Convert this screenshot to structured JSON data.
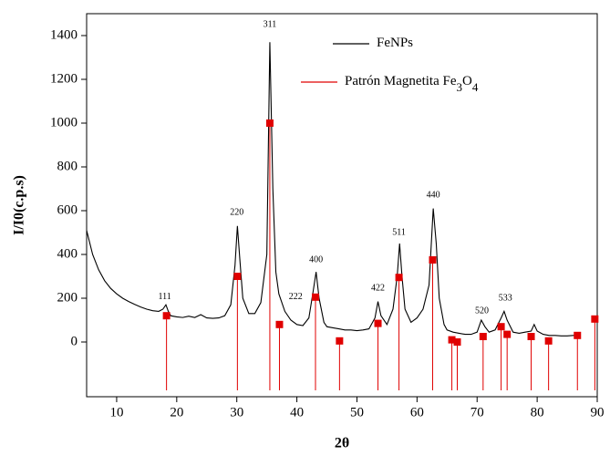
{
  "chart_data": {
    "type": "line",
    "x_label": "2θ",
    "y_label": "I/I0(c.p.s)",
    "xlim": [
      5,
      90
    ],
    "xticks": [
      10,
      20,
      30,
      40,
      50,
      60,
      70,
      80,
      90
    ],
    "ylim": [
      -250,
      1500
    ],
    "yticks": [
      0,
      200,
      400,
      600,
      800,
      1000,
      1200,
      1400
    ],
    "legend": "top-right",
    "series": [
      {
        "name": "FeNPs",
        "color": "#000000",
        "style": "line",
        "x": [
          5,
          6,
          7,
          8,
          9,
          10,
          11,
          12,
          13,
          14,
          15,
          16,
          17,
          17.7,
          18.2,
          18.6,
          19,
          20,
          21,
          22,
          23,
          24,
          25,
          26,
          27,
          28,
          29,
          29.7,
          30.1,
          30.5,
          31,
          32,
          33,
          34,
          35,
          35.5,
          36,
          36.5,
          37,
          38,
          39,
          40,
          41,
          42,
          42.7,
          43.2,
          43.7,
          44.5,
          45,
          46,
          47,
          48,
          49,
          50,
          51,
          52,
          53,
          53.5,
          54,
          55,
          56,
          56.7,
          57.1,
          57.5,
          58,
          59,
          60,
          61,
          62,
          62.7,
          63.2,
          63.7,
          64.5,
          65,
          66,
          67,
          68,
          69,
          70,
          70.7,
          71.3,
          72,
          73,
          74,
          74.5,
          75,
          76,
          77,
          78,
          79,
          79.5,
          80,
          81,
          82,
          83,
          84,
          85,
          86,
          87
        ],
        "values": [
          510,
          400,
          330,
          280,
          245,
          220,
          200,
          185,
          172,
          160,
          150,
          143,
          140,
          150,
          170,
          140,
          120,
          115,
          112,
          118,
          112,
          125,
          110,
          108,
          110,
          120,
          170,
          350,
          530,
          380,
          200,
          130,
          130,
          180,
          400,
          1370,
          700,
          320,
          220,
          140,
          100,
          80,
          75,
          110,
          230,
          320,
          200,
          90,
          70,
          65,
          60,
          55,
          55,
          52,
          55,
          60,
          110,
          185,
          120,
          80,
          150,
          300,
          450,
          300,
          150,
          90,
          110,
          150,
          260,
          610,
          450,
          200,
          80,
          55,
          45,
          40,
          35,
          35,
          45,
          100,
          70,
          45,
          55,
          110,
          140,
          100,
          45,
          40,
          45,
          50,
          80,
          50,
          35,
          30,
          30,
          28,
          28,
          30,
          30
        ]
      },
      {
        "name": "Patrón Magnetita Fe3O4",
        "color": "#e00000",
        "style": "stem",
        "x": [
          18.3,
          30.1,
          35.5,
          37.1,
          43.1,
          47.1,
          53.5,
          57.0,
          62.6,
          65.8,
          66.7,
          71.0,
          74.0,
          75.0,
          79.0,
          81.9,
          86.7,
          89.6
        ],
        "values": [
          120,
          300,
          1000,
          80,
          205,
          5,
          85,
          295,
          375,
          10,
          0,
          25,
          70,
          35,
          25,
          5,
          30,
          105
        ]
      }
    ],
    "annotations": [
      {
        "text": "111",
        "x": 18,
        "y": 205
      },
      {
        "text": "220",
        "x": 30,
        "y": 590
      },
      {
        "text": "311",
        "x": 35.5,
        "y": 1450
      },
      {
        "text": "222",
        "x": 39.8,
        "y": 205
      },
      {
        "text": "400",
        "x": 43.2,
        "y": 375
      },
      {
        "text": "422",
        "x": 53.5,
        "y": 245
      },
      {
        "text": "511",
        "x": 57,
        "y": 500
      },
      {
        "text": "440",
        "x": 62.7,
        "y": 670
      },
      {
        "text": "520",
        "x": 70.8,
        "y": 140
      },
      {
        "text": "533",
        "x": 74.7,
        "y": 200
      }
    ]
  }
}
